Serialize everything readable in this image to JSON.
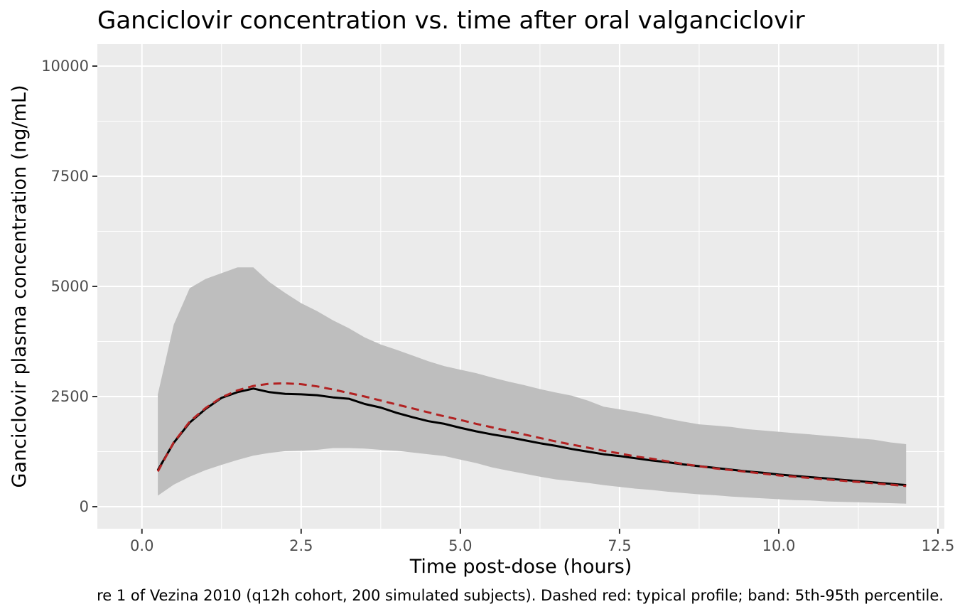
{
  "chart_data": {
    "type": "line",
    "title": "Ganciclovir concentration vs. time after oral valganciclovir",
    "xlabel": "Time post-dose (hours)",
    "ylabel": "Ganciclovir plasma concentration (ng/mL)",
    "caption": "re 1 of Vezina 2010 (q12h cohort, 200 simulated subjects). Dashed red: typical profile; band: 5th-95th percentile.",
    "xlim": [
      -0.7,
      12.6
    ],
    "ylim": [
      -500,
      10500
    ],
    "x_ticks": [
      0.0,
      2.5,
      5.0,
      7.5,
      10.0,
      12.5
    ],
    "x_tick_labels": [
      "0.0",
      "2.5",
      "5.0",
      "7.5",
      "10.0",
      "12.5"
    ],
    "y_ticks": [
      0,
      2500,
      5000,
      7500,
      10000
    ],
    "y_tick_labels": [
      "0",
      "2500",
      "5000",
      "7500",
      "10000"
    ],
    "grid": true,
    "colors": {
      "panel_background": "#ebebeb",
      "grid": "#ffffff",
      "band": "#bebebe",
      "median_line": "#000000",
      "typical_line": "#b22222"
    },
    "x": [
      0.25,
      0.5,
      0.75,
      1.0,
      1.25,
      1.5,
      1.75,
      2.0,
      2.25,
      2.5,
      2.75,
      3.0,
      3.25,
      3.5,
      3.75,
      4.0,
      4.25,
      4.5,
      4.75,
      5.0,
      5.25,
      5.5,
      5.75,
      6.0,
      6.25,
      6.5,
      6.75,
      7.0,
      7.25,
      7.5,
      7.75,
      8.0,
      8.25,
      8.5,
      8.75,
      9.0,
      9.25,
      9.5,
      9.75,
      10.0,
      10.25,
      10.5,
      10.75,
      11.0,
      11.25,
      11.5,
      11.75,
      12.0
    ],
    "series": [
      {
        "role": "band",
        "lower": [
          250,
          500,
          680,
          830,
          950,
          1060,
          1160,
          1220,
          1260,
          1270,
          1290,
          1330,
          1330,
          1320,
          1290,
          1270,
          1230,
          1190,
          1150,
          1070,
          990,
          890,
          820,
          750,
          680,
          620,
          580,
          540,
          490,
          450,
          410,
          380,
          340,
          310,
          280,
          260,
          230,
          210,
          190,
          170,
          150,
          140,
          120,
          110,
          100,
          90,
          80,
          70
        ],
        "upper": [
          2550,
          4130,
          4960,
          5170,
          5300,
          5430,
          5430,
          5100,
          4850,
          4620,
          4440,
          4230,
          4050,
          3840,
          3680,
          3560,
          3430,
          3300,
          3190,
          3110,
          3030,
          2930,
          2840,
          2760,
          2670,
          2590,
          2520,
          2410,
          2270,
          2210,
          2150,
          2080,
          2000,
          1930,
          1870,
          1840,
          1810,
          1760,
          1730,
          1700,
          1670,
          1640,
          1610,
          1580,
          1550,
          1520,
          1460,
          1420
        ]
      },
      {
        "role": "median",
        "style": "solid",
        "values": [
          830,
          1450,
          1910,
          2220,
          2470,
          2600,
          2680,
          2600,
          2560,
          2550,
          2530,
          2480,
          2450,
          2330,
          2250,
          2130,
          2030,
          1940,
          1880,
          1790,
          1710,
          1640,
          1580,
          1510,
          1440,
          1380,
          1310,
          1250,
          1190,
          1150,
          1100,
          1050,
          1010,
          960,
          920,
          880,
          840,
          800,
          770,
          730,
          700,
          670,
          640,
          610,
          580,
          550,
          520,
          490
        ]
      },
      {
        "role": "typical",
        "style": "dashed",
        "values": [
          800,
          1460,
          1930,
          2240,
          2480,
          2640,
          2740,
          2790,
          2800,
          2780,
          2730,
          2660,
          2580,
          2500,
          2410,
          2320,
          2230,
          2140,
          2050,
          1970,
          1880,
          1800,
          1720,
          1640,
          1560,
          1480,
          1410,
          1340,
          1270,
          1210,
          1140,
          1090,
          1030,
          970,
          920,
          870,
          830,
          790,
          750,
          710,
          680,
          650,
          620,
          590,
          560,
          530,
          500,
          470
        ]
      }
    ]
  }
}
